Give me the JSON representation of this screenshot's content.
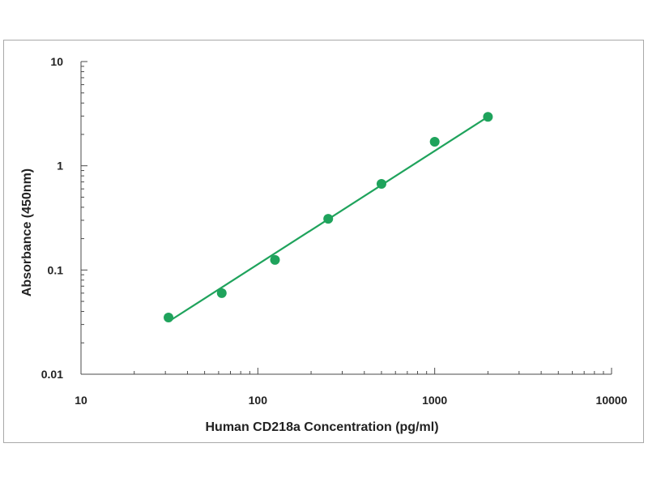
{
  "chart_data": {
    "type": "scatter",
    "xlabel": "Human CD218a Concentration (pg/ml)",
    "ylabel": "Absorbance (450nm)",
    "x_scale": "log",
    "y_scale": "log",
    "xlim": [
      10,
      10000
    ],
    "ylim": [
      0.01,
      10
    ],
    "x_ticks": [
      "10",
      "100",
      "1000",
      "10000"
    ],
    "y_ticks": [
      "10",
      "1",
      "0.1",
      "0.01"
    ],
    "grid": false,
    "legend": "none",
    "series": [
      {
        "x": [
          31.25,
          62.5,
          125,
          250,
          500,
          1000,
          2000
        ],
        "y": [
          0.035,
          0.06,
          0.125,
          0.31,
          0.67,
          1.7,
          2.95
        ]
      }
    ],
    "fit_line": {
      "x": [
        31.25,
        2000
      ],
      "y": [
        0.032,
        2.95
      ]
    },
    "colors": {
      "series": "#1fa35c",
      "axis": "#4a4a4a"
    }
  }
}
